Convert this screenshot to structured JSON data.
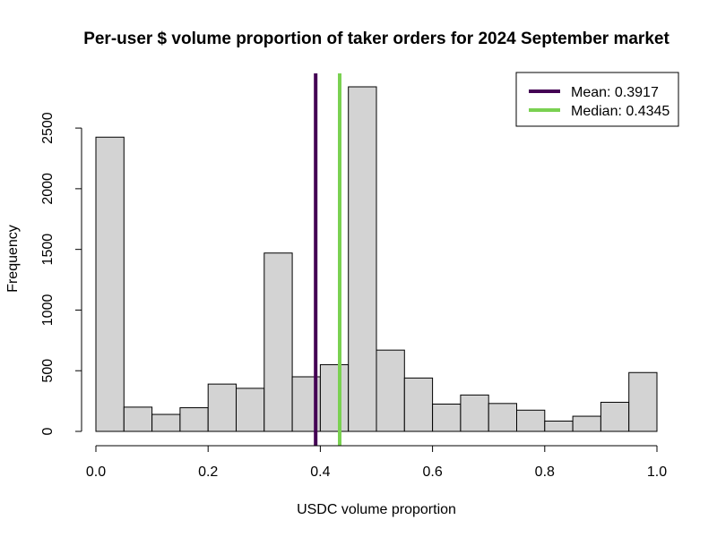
{
  "chart_data": {
    "type": "bar",
    "title": "Per-user $ volume proportion of taker orders for 2024 September market",
    "xlabel": "USDC volume proportion",
    "ylabel": "Frequency",
    "bin_width": 0.05,
    "bins": [
      {
        "start": 0.0,
        "end": 0.05,
        "count": 2425
      },
      {
        "start": 0.05,
        "end": 0.1,
        "count": 200
      },
      {
        "start": 0.1,
        "end": 0.15,
        "count": 140
      },
      {
        "start": 0.15,
        "end": 0.2,
        "count": 195
      },
      {
        "start": 0.2,
        "end": 0.25,
        "count": 390
      },
      {
        "start": 0.25,
        "end": 0.3,
        "count": 355
      },
      {
        "start": 0.3,
        "end": 0.35,
        "count": 1470
      },
      {
        "start": 0.35,
        "end": 0.4,
        "count": 450
      },
      {
        "start": 0.4,
        "end": 0.45,
        "count": 550
      },
      {
        "start": 0.45,
        "end": 0.5,
        "count": 2840
      },
      {
        "start": 0.5,
        "end": 0.55,
        "count": 670
      },
      {
        "start": 0.55,
        "end": 0.6,
        "count": 440
      },
      {
        "start": 0.6,
        "end": 0.65,
        "count": 225
      },
      {
        "start": 0.65,
        "end": 0.7,
        "count": 300
      },
      {
        "start": 0.7,
        "end": 0.75,
        "count": 230
      },
      {
        "start": 0.75,
        "end": 0.8,
        "count": 175
      },
      {
        "start": 0.8,
        "end": 0.85,
        "count": 85
      },
      {
        "start": 0.85,
        "end": 0.9,
        "count": 125
      },
      {
        "start": 0.9,
        "end": 0.95,
        "count": 240
      },
      {
        "start": 0.95,
        "end": 1.0,
        "count": 485
      }
    ],
    "xlim": [
      0,
      1
    ],
    "ylim": [
      0,
      2840
    ],
    "x_ticks": [
      0.0,
      0.2,
      0.4,
      0.6,
      0.8,
      1.0
    ],
    "x_tick_labels": [
      "0.0",
      "0.2",
      "0.4",
      "0.6",
      "0.8",
      "1.0"
    ],
    "y_ticks": [
      0,
      500,
      1000,
      1500,
      2000,
      2500
    ],
    "y_tick_labels": [
      "0",
      "500",
      "1000",
      "1500",
      "2000",
      "2500"
    ],
    "grid": false,
    "bar_fill": "#d3d3d3",
    "bar_stroke": "#000000",
    "reference_lines": [
      {
        "value": 0.3917,
        "color": "#440154",
        "label": "Mean: 0.3917"
      },
      {
        "value": 0.4345,
        "color": "#7ad151",
        "label": "Median: 0.4345"
      }
    ],
    "legend": {
      "placement": "top-right",
      "entries": [
        {
          "label": "Mean: 0.3917",
          "color": "#440154"
        },
        {
          "label": "Median: 0.4345",
          "color": "#7ad151"
        }
      ]
    }
  }
}
